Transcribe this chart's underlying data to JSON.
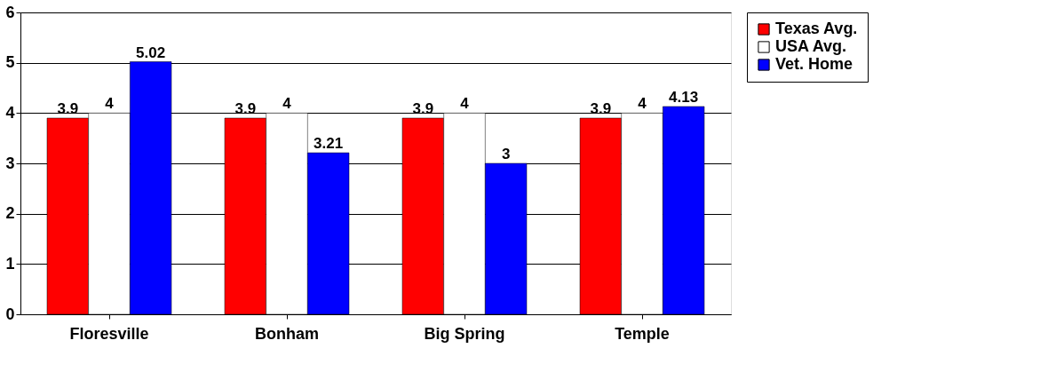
{
  "chart_data": {
    "type": "bar",
    "categories": [
      "Floresville",
      "Bonham",
      "Big Spring",
      "Temple"
    ],
    "series": [
      {
        "name": "Texas Avg.",
        "color": "#ff0000",
        "values": [
          3.9,
          3.9,
          3.9,
          3.9
        ]
      },
      {
        "name": "USA Avg.",
        "color": "#ffffff",
        "values": [
          4,
          4,
          4,
          4
        ]
      },
      {
        "name": "Vet. Home",
        "color": "#0000ff",
        "values": [
          5.02,
          3.21,
          3,
          4.13
        ]
      }
    ],
    "ylim": [
      0,
      6
    ],
    "yticks": [
      0,
      1,
      2,
      3,
      4,
      5,
      6
    ],
    "grid": "y",
    "legend": "right",
    "data_labels": true
  }
}
